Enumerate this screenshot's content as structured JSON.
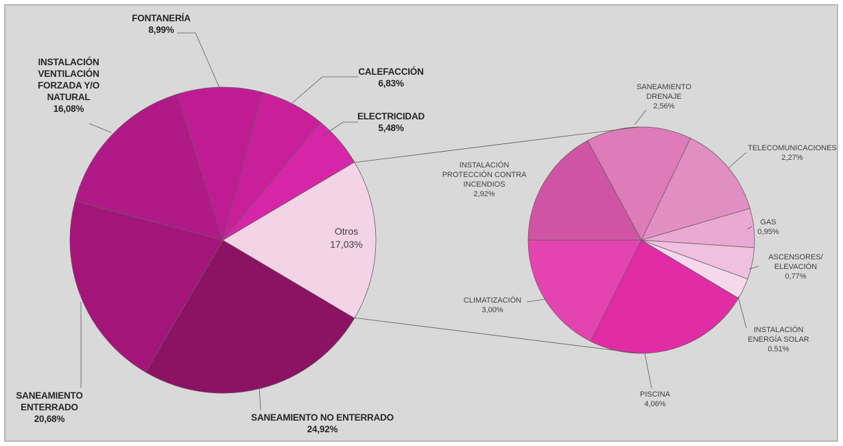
{
  "chart_data": [
    {
      "type": "pie",
      "categories": [
        "SANEAMIENTO NO ENTERRADO",
        "SANEAMIENTO ENTERRADO",
        "INSTALACIÓN VENTILACIÓN FORZADA Y/O NATURAL",
        "FONTANERÍA",
        "CALEFACCIÓN",
        "ELECTRICIDAD",
        "Otros"
      ],
      "values": [
        24.92,
        20.68,
        16.08,
        8.99,
        6.83,
        5.48,
        17.03
      ],
      "value_labels": [
        "24,92%",
        "20,68%",
        "16,08%",
        "8,99%",
        "6,83%",
        "5,48%",
        "17,03%"
      ],
      "colors": [
        "#8c1263",
        "#a4157a",
        "#b01a88",
        "#bf1c93",
        "#c91f9b",
        "#d626a7",
        "#f3d3e6"
      ]
    },
    {
      "type": "pie",
      "categories": [
        "INSTALACIÓN PROTECCIÓN CONTRA INCENDIOS",
        "SANEAMIENTO DRENAJE",
        "TELECOMUNICACIONES",
        "GAS",
        "ASCENSORES/ ELEVACIÓN",
        "INSTALACIÓN ENERGÍA SOLAR",
        "PISCINA",
        "CLIMATIZACIÓN"
      ],
      "values": [
        2.92,
        2.56,
        2.27,
        0.95,
        0.77,
        0.51,
        4.06,
        3.0
      ],
      "value_labels": [
        "2,92%",
        "2,56%",
        "2,27%",
        "0,95%",
        "0,77%",
        "0,51%",
        "4,06%",
        "3,00%"
      ],
      "colors": [
        "#cf55a4",
        "#de7bb9",
        "#e18fc2",
        "#eaa9d3",
        "#f0c0e0",
        "#f6d8ec",
        "#e12ca6",
        "#e444b0"
      ]
    }
  ]
}
